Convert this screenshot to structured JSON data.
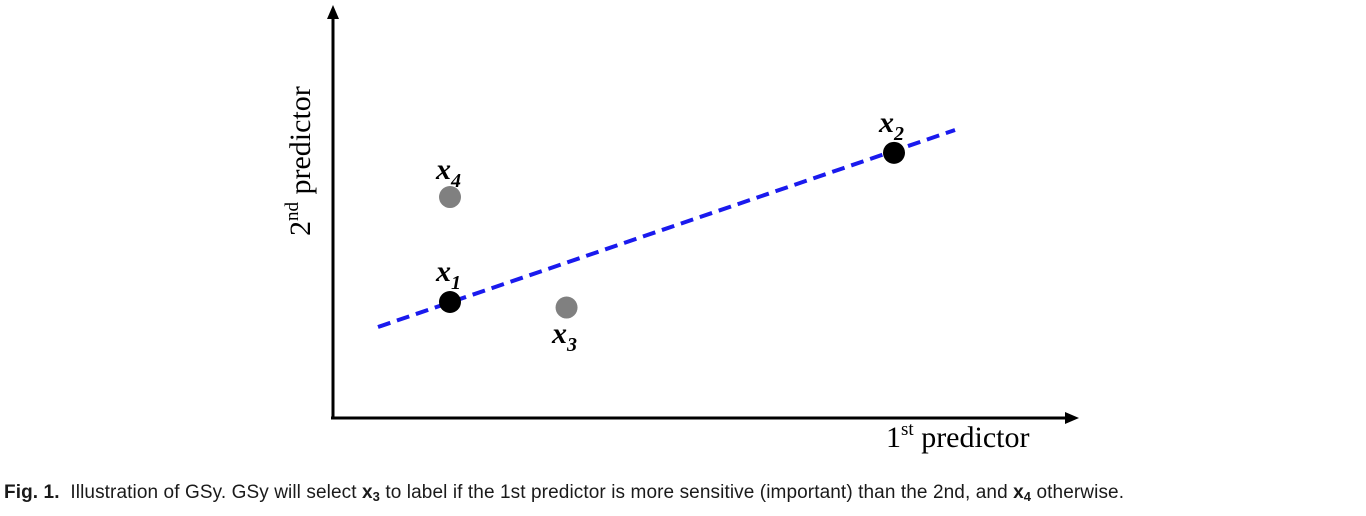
{
  "figure": {
    "x_axis_label": {
      "main": "1",
      "sup": "st",
      "rest": " predictor"
    },
    "y_axis_label": {
      "main": "2",
      "sup": "nd",
      "rest": " predictor"
    },
    "points": [
      {
        "id": "x1",
        "base": "x",
        "sub": "1",
        "color": "#000000",
        "x": 1.0,
        "y": 1.0
      },
      {
        "id": "x2",
        "base": "x",
        "sub": "2",
        "color": "#000000",
        "x": 5.0,
        "y": 2.35
      },
      {
        "id": "x3",
        "base": "x",
        "sub": "3",
        "color": "#808080",
        "x": 2.05,
        "y": 0.95
      },
      {
        "id": "x4",
        "base": "x",
        "sub": "4",
        "color": "#808080",
        "x": 1.0,
        "y": 1.95
      }
    ],
    "line_color": "#1a1aee",
    "point_colors": {
      "labeled": "#000000",
      "candidate": "#808080"
    }
  },
  "caption": {
    "label": "Fig. 1.",
    "part1": "Illustration of GSy. GSy will select ",
    "var1": "x",
    "sub1": "3",
    "part2": " to label if the 1st predictor is more sensitive (important) than the 2nd, and ",
    "var2": "x",
    "sub2": "4",
    "part3": " otherwise."
  }
}
